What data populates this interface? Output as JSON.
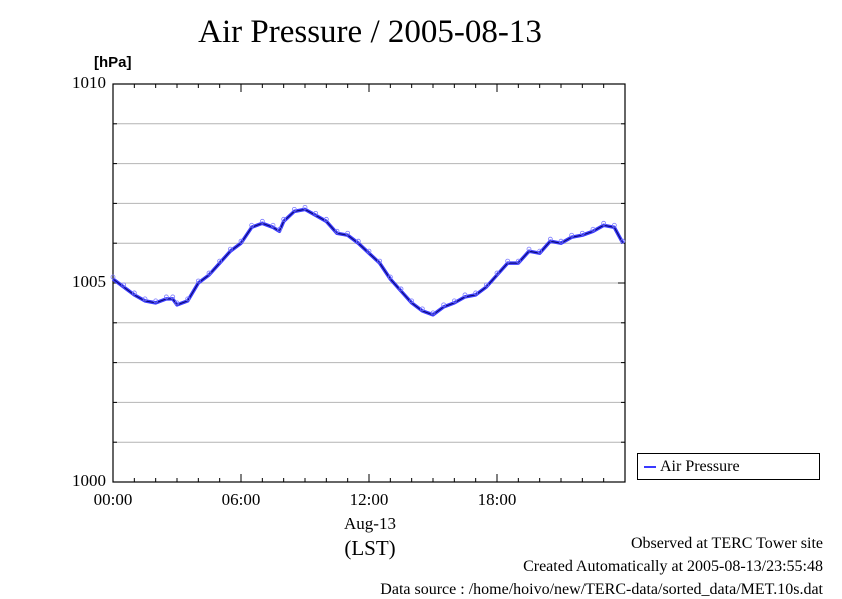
{
  "chart_data": {
    "type": "line",
    "title": "Air Pressure / 2005-08-13",
    "ylabel": "[hPa]",
    "ylim": [
      1000,
      1010
    ],
    "yticks": [
      {
        "value": 1000,
        "label": "1000"
      },
      {
        "value": 1005,
        "label": "1005"
      },
      {
        "value": 1010,
        "label": "1010"
      }
    ],
    "xlim": [
      0,
      24
    ],
    "xticks": [
      {
        "value": 0,
        "label": "00:00"
      },
      {
        "value": 6,
        "label": "06:00"
      },
      {
        "value": 12,
        "label": "12:00"
      },
      {
        "value": 18,
        "label": "18:00"
      }
    ],
    "xlabel_date": "Aug-13",
    "xlabel_tz": "(LST)",
    "grid": true,
    "legend_position": "bottom-right outside",
    "series": [
      {
        "name": "Air Pressure",
        "color": "#3a3aff",
        "x": [
          0.0,
          0.5,
          1.0,
          1.5,
          2.0,
          2.5,
          2.8,
          3.0,
          3.5,
          4.0,
          4.5,
          5.0,
          5.5,
          6.0,
          6.5,
          7.0,
          7.5,
          7.8,
          8.0,
          8.5,
          9.0,
          9.5,
          10.0,
          10.5,
          11.0,
          11.5,
          12.0,
          12.5,
          13.0,
          13.5,
          14.0,
          14.5,
          15.0,
          15.5,
          16.0,
          16.5,
          17.0,
          17.5,
          18.0,
          18.5,
          19.0,
          19.5,
          20.0,
          20.5,
          21.0,
          21.5,
          22.0,
          22.5,
          23.0,
          23.5,
          23.9
        ],
        "y": [
          1005.1,
          1004.9,
          1004.7,
          1004.55,
          1004.5,
          1004.6,
          1004.6,
          1004.45,
          1004.55,
          1005.0,
          1005.2,
          1005.5,
          1005.8,
          1006.0,
          1006.4,
          1006.5,
          1006.4,
          1006.3,
          1006.55,
          1006.8,
          1006.85,
          1006.7,
          1006.55,
          1006.25,
          1006.2,
          1006.0,
          1005.75,
          1005.5,
          1005.1,
          1004.8,
          1004.5,
          1004.3,
          1004.2,
          1004.4,
          1004.5,
          1004.65,
          1004.7,
          1004.9,
          1005.2,
          1005.5,
          1005.5,
          1005.8,
          1005.75,
          1006.05,
          1006.0,
          1006.15,
          1006.2,
          1006.3,
          1006.45,
          1006.4,
          1006.0
        ]
      }
    ]
  },
  "footer": {
    "line1": "Observed at TERC Tower site",
    "line2": "Created Automatically at 2005-08-13/23:55:48",
    "line3": "Data source : /home/hoivo/new/TERC-data/sorted_data/MET.10s.dat"
  }
}
